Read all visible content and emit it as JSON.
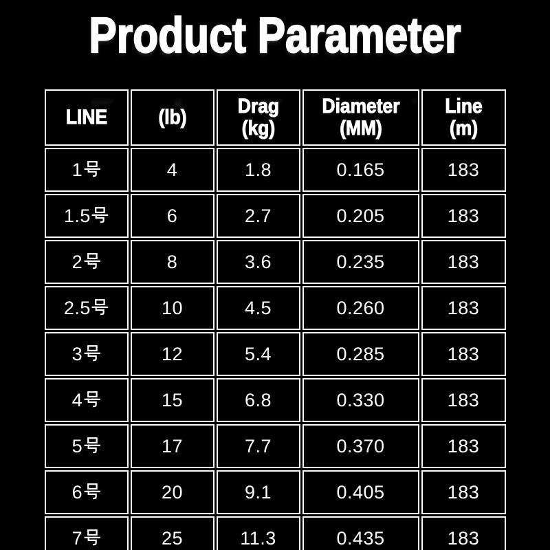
{
  "page": {
    "title": "Product Parameter"
  },
  "colors": {
    "background": "#000000",
    "table_border": "#ffffff",
    "text": "#ffffff"
  },
  "chart_data": {
    "type": "table",
    "title": "Product Parameter",
    "columns": [
      "LINE",
      "(lb)",
      "Drag (kg)",
      "Diameter (MM)",
      "Line (m)"
    ],
    "columns_display": [
      {
        "l1": "LINE",
        "l2": ""
      },
      {
        "l1": "(lb)",
        "l2": ""
      },
      {
        "l1": "Drag",
        "l2": "(kg)"
      },
      {
        "l1": "Diameter",
        "l2": "(MM)"
      },
      {
        "l1": "Line",
        "l2": "(m)"
      }
    ],
    "rows": [
      [
        "1号",
        "4",
        "1.8",
        "0.165",
        "183"
      ],
      [
        "1.5号",
        "6",
        "2.7",
        "0.205",
        "183"
      ],
      [
        "2号",
        "8",
        "3.6",
        "0.235",
        "183"
      ],
      [
        "2.5号",
        "10",
        "4.5",
        "0.260",
        "183"
      ],
      [
        "3号",
        "12",
        "5.4",
        "0.285",
        "183"
      ],
      [
        "4号",
        "15",
        "6.8",
        "0.330",
        "183"
      ],
      [
        "5号",
        "17",
        "7.7",
        "0.370",
        "183"
      ],
      [
        "6号",
        "20",
        "9.1",
        "0.405",
        "183"
      ],
      [
        "7号",
        "25",
        "11.3",
        "0.435",
        "183"
      ]
    ]
  }
}
